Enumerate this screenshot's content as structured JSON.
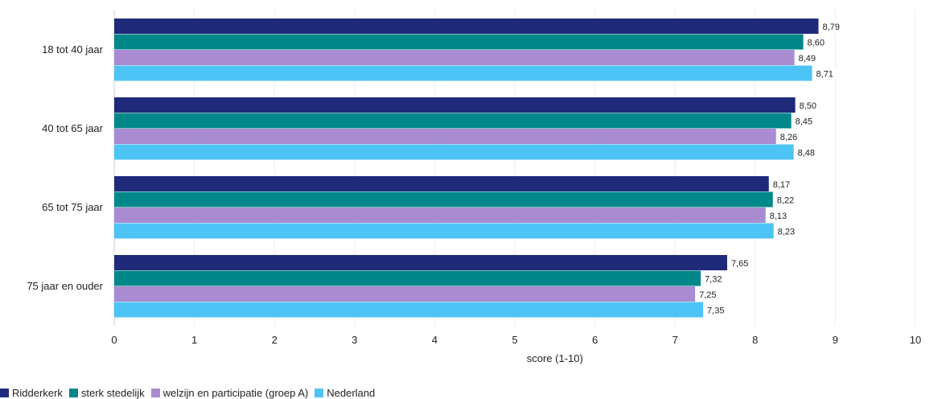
{
  "chart_data": {
    "type": "bar",
    "orientation": "horizontal",
    "categories": [
      "18 tot 40 jaar",
      "40 tot 65 jaar",
      "65 tot 75 jaar",
      "75 jaar en ouder"
    ],
    "series": [
      {
        "name": "Ridderkerk",
        "color": "#1f2a7a",
        "values": [
          8.79,
          8.5,
          8.17,
          7.65
        ],
        "labels": [
          "8,79",
          "8,50",
          "8,17",
          "7,65"
        ]
      },
      {
        "name": "sterk stedelijk",
        "color": "#00878a",
        "values": [
          8.6,
          8.45,
          8.22,
          7.32
        ],
        "labels": [
          "8,60",
          "8,45",
          "8,22",
          "7,32"
        ]
      },
      {
        "name": "welzijn en participatie (groep A)",
        "color": "#a98bd1",
        "values": [
          8.49,
          8.26,
          8.13,
          7.25
        ],
        "labels": [
          "8,49",
          "8,26",
          "8,13",
          "7,25"
        ]
      },
      {
        "name": "Nederland",
        "color": "#4ec3f5",
        "values": [
          8.71,
          8.48,
          8.23,
          7.35
        ],
        "labels": [
          "8,71",
          "8,48",
          "8,23",
          "7,35"
        ]
      }
    ],
    "xlabel": "score (1-10)",
    "xlim": [
      0,
      10
    ],
    "xticks": [
      "0",
      "1",
      "2",
      "3",
      "4",
      "5",
      "6",
      "7",
      "8",
      "9",
      "10"
    ],
    "grid": true,
    "legend_position": "bottom-left"
  }
}
